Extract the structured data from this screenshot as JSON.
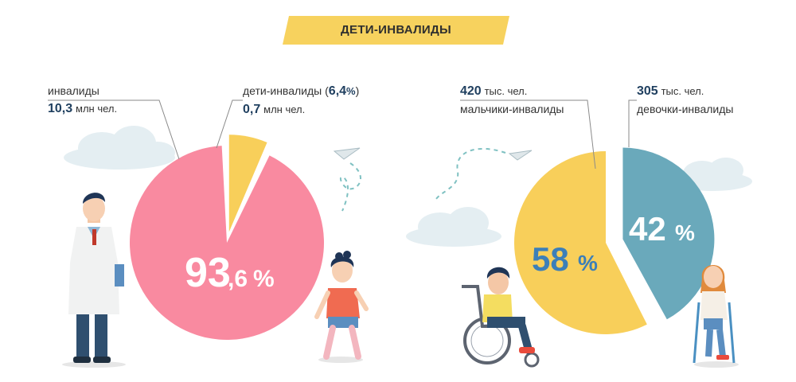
{
  "title": "ДЕТИ-ИНВАЛИДЫ",
  "colors": {
    "banner": "#f7d25e",
    "pink": "#f98aa0",
    "yellow": "#f8cf5a",
    "teal": "#6aa9bb",
    "cloud": "#e4eef2",
    "dash": "#7fc1c2",
    "leader": "#8a8a8a"
  },
  "chart_data": [
    {
      "type": "pie",
      "title": "",
      "slices": [
        {
          "label": "инвалиды",
          "value": 93.6,
          "amount": "10,3",
          "unit": "млн чел."
        },
        {
          "label": "дети-инвалиды",
          "value": 6.4,
          "amount": "0,7",
          "unit": "млн чел."
        }
      ],
      "center_label": {
        "int": "93",
        "dec": ",6",
        "pct": "%"
      },
      "labels": {
        "left": {
          "name": "инвалиды",
          "amount": "10,3",
          "unit": "млн чел."
        },
        "right": {
          "name": "дети-инвалиды",
          "pct_open": "(",
          "pct_value": "6,4",
          "pct_sign": "%",
          "pct_close": ")",
          "amount": "0,7",
          "unit": "млн чел."
        }
      }
    },
    {
      "type": "pie",
      "title": "",
      "slices": [
        {
          "label": "мальчики-инвалиды",
          "value": 58,
          "amount": "420",
          "unit": "тыс. чел."
        },
        {
          "label": "девочки-инвалиды",
          "value": 42,
          "amount": "305",
          "unit": "тыс. чел."
        }
      ],
      "labels": {
        "boys": {
          "amount": "420",
          "unit": "тыс. чел.",
          "name": "мальчики-инвалиды",
          "pct": "58",
          "pct_sign": "%"
        },
        "girls": {
          "amount": "305",
          "unit": "тыс. чел.",
          "name": "девочки-инвалиды",
          "pct": "42",
          "pct_sign": "%"
        }
      }
    }
  ]
}
